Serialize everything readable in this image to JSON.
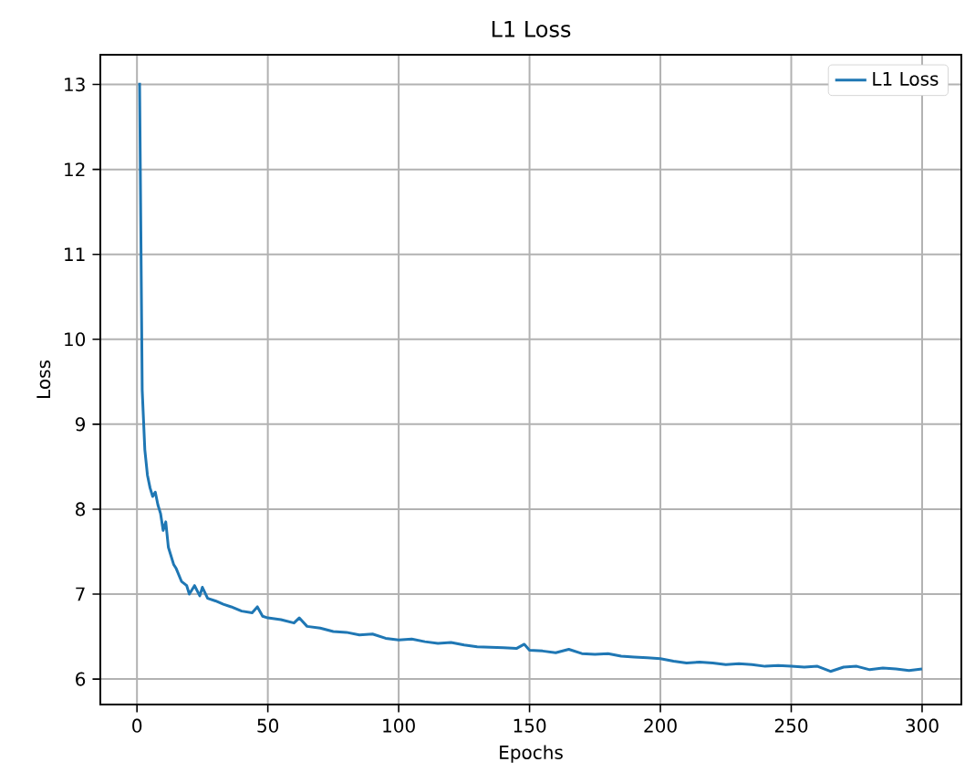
{
  "chart_data": {
    "type": "line",
    "title": "L1 Loss",
    "xlabel": "Epochs",
    "ylabel": "Loss",
    "xlim": [
      -14,
      315
    ],
    "ylim": [
      5.7,
      13.35
    ],
    "xticks": [
      0,
      50,
      100,
      150,
      200,
      250,
      300
    ],
    "yticks": [
      6,
      7,
      8,
      9,
      10,
      11,
      12,
      13
    ],
    "grid": true,
    "legend": "top right",
    "marker": "none",
    "line_style": "solid",
    "series": [
      {
        "name": "L1 Loss",
        "color": "#1f77b4",
        "x": [
          1,
          2,
          3,
          4,
          5,
          6,
          7,
          8,
          9,
          10,
          11,
          12,
          13,
          14,
          15,
          17,
          19,
          20,
          22,
          24,
          25,
          27,
          30,
          33,
          36,
          40,
          44,
          46,
          48,
          50,
          55,
          60,
          62,
          65,
          70,
          75,
          80,
          85,
          90,
          95,
          100,
          105,
          110,
          115,
          120,
          125,
          130,
          140,
          145,
          148,
          150,
          155,
          160,
          165,
          170,
          175,
          180,
          185,
          190,
          195,
          200,
          205,
          210,
          215,
          220,
          225,
          230,
          235,
          240,
          245,
          250,
          255,
          260,
          265,
          270,
          275,
          280,
          285,
          290,
          295,
          300
        ],
        "values": [
          13.02,
          9.4,
          8.7,
          8.4,
          8.25,
          8.15,
          8.2,
          8.05,
          7.95,
          7.75,
          7.85,
          7.55,
          7.45,
          7.35,
          7.3,
          7.15,
          7.1,
          7.0,
          7.1,
          6.98,
          7.08,
          6.95,
          6.92,
          6.88,
          6.85,
          6.8,
          6.78,
          6.85,
          6.74,
          6.72,
          6.7,
          6.66,
          6.72,
          6.62,
          6.6,
          6.56,
          6.55,
          6.52,
          6.53,
          6.48,
          6.46,
          6.47,
          6.44,
          6.42,
          6.43,
          6.4,
          6.38,
          6.37,
          6.36,
          6.41,
          6.34,
          6.33,
          6.31,
          6.35,
          6.3,
          6.29,
          6.3,
          6.27,
          6.26,
          6.25,
          6.24,
          6.21,
          6.19,
          6.2,
          6.19,
          6.17,
          6.18,
          6.17,
          6.15,
          6.16,
          6.15,
          6.14,
          6.15,
          6.09,
          6.14,
          6.15,
          6.11,
          6.13,
          6.12,
          6.1,
          6.12
        ]
      }
    ]
  }
}
